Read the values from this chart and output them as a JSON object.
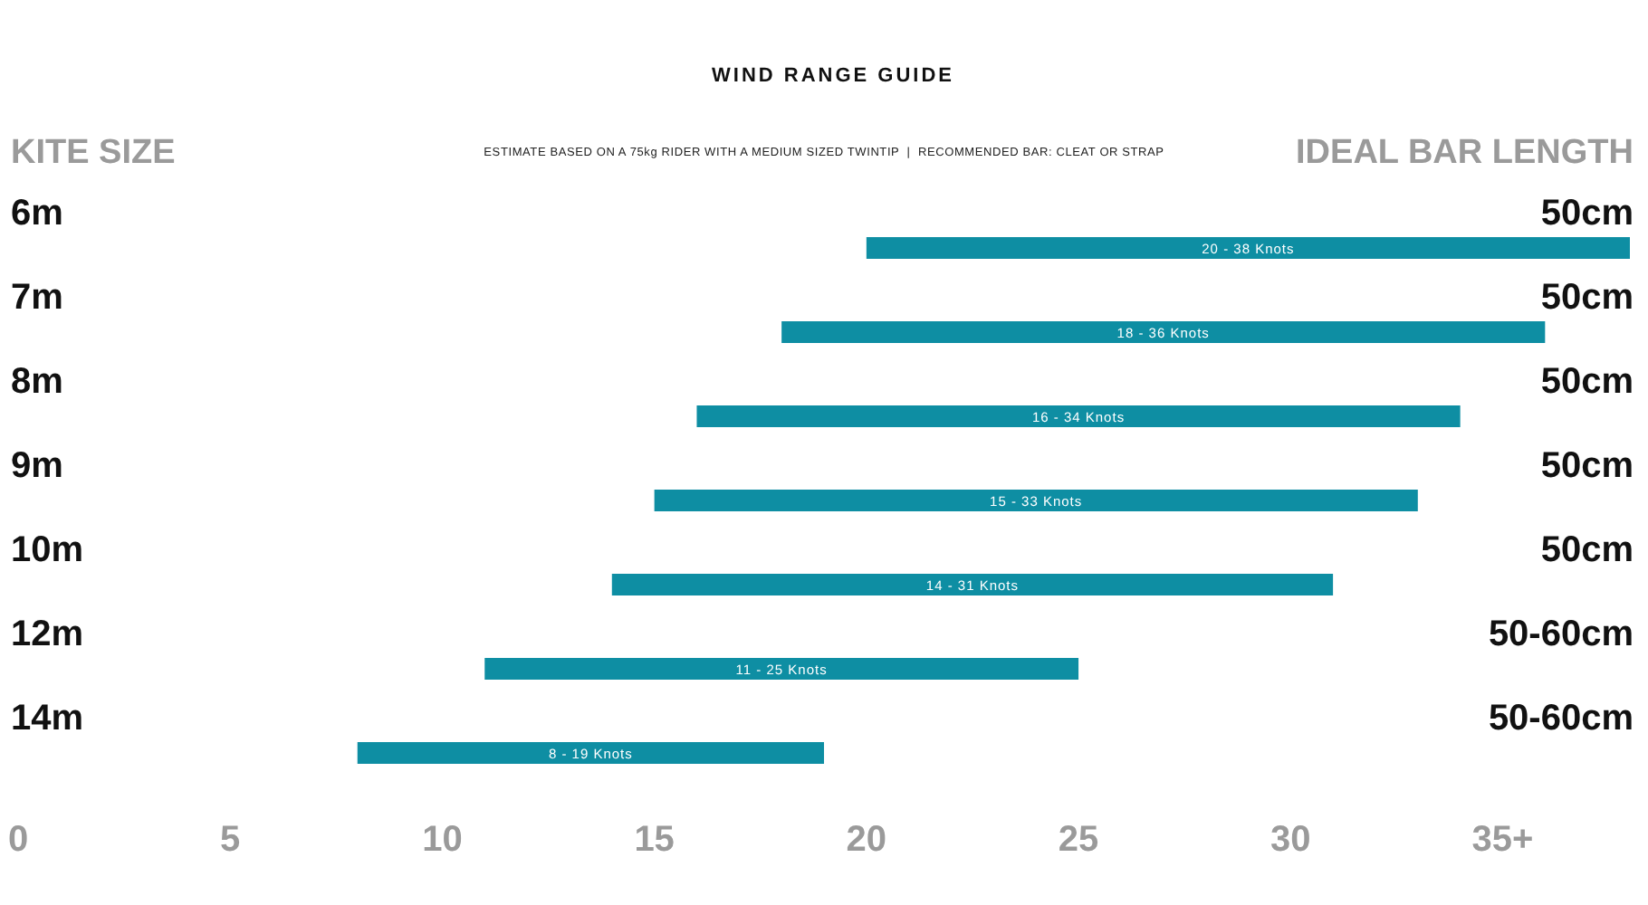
{
  "chart_data": {
    "type": "bar",
    "orientation": "horizontal",
    "title": "WIND RANGE GUIDE",
    "subtitle": "ESTIMATE BASED ON A 75kg RIDER WITH A MEDIUM SIZED TWINTIP  |  RECOMMENDED BAR: CLEAT OR STRAP",
    "ylabel": "KITE SIZE",
    "y2label": "IDEAL BAR LENGTH",
    "categories": [
      "6m",
      "7m",
      "8m",
      "9m",
      "10m",
      "12m",
      "14m"
    ],
    "base": [
      20,
      18,
      16,
      15,
      14,
      11,
      8
    ],
    "values": [
      18,
      18,
      18,
      18,
      17,
      14,
      11
    ],
    "color": "#0e8ea3",
    "annotations": [
      "50cm",
      "50cm",
      "50cm",
      "50cm",
      "50cm",
      "50-60cm",
      "50-60cm",
      "20 - 38 Knots",
      "18 - 36 Knots",
      "16 - 34 Knots",
      "15 - 33 Knots",
      "14 - 31 Knots",
      "11 - 25 Knots",
      "8 - 19 Knots"
    ],
    "xlim": [
      0,
      38
    ],
    "xticks": [
      0,
      5,
      10,
      15,
      20,
      25,
      30,
      {
        "value": 35,
        "label": "35+"
      }
    ],
    "grid": false
  }
}
